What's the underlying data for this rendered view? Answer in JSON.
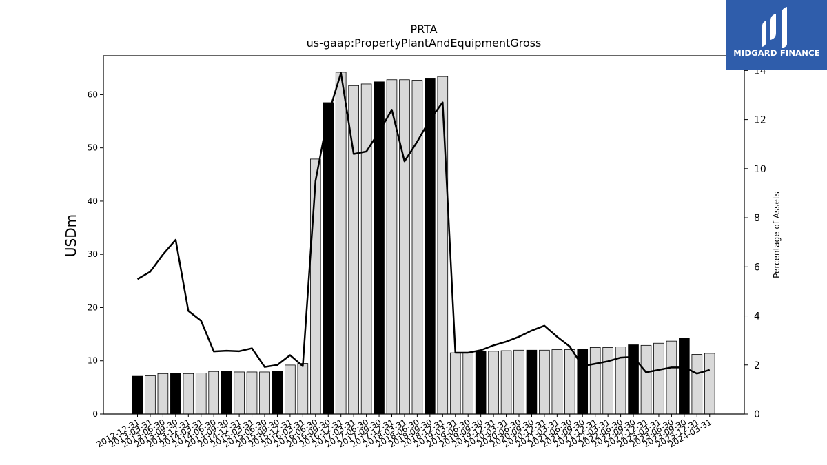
{
  "brand": {
    "name": "MIDGARD FINANCE",
    "color": "#2f5dab"
  },
  "chart_data": {
    "type": "bar",
    "title": "PRTA",
    "subtitle": "us-gaap:PropertyPlantAndEquipmentGross",
    "ylabel": "USDm",
    "y2label": "Percentage of Assets",
    "ylim": [
      0,
      67.3
    ],
    "y2lim": [
      0,
      14.6
    ],
    "yticks": [
      0,
      10,
      20,
      30,
      40,
      50,
      60
    ],
    "y2ticks": [
      0,
      2,
      4,
      6,
      8,
      10,
      12,
      14
    ],
    "categories": [
      "2012-12-31",
      "2013-03-31",
      "2013-06-30",
      "2013-09-30",
      "2013-12-31",
      "2014-03-31",
      "2014-06-30",
      "2014-09-30",
      "2014-12-31",
      "2015-03-31",
      "2015-06-30",
      "2015-09-30",
      "2015-12-31",
      "2016-03-31",
      "2016-06-30",
      "2016-09-30",
      "2016-12-31",
      "2017-03-31",
      "2017-06-30",
      "2017-09-30",
      "2017-12-31",
      "2018-03-31",
      "2018-06-30",
      "2018-09-30",
      "2018-12-31",
      "2019-03-31",
      "2019-06-30",
      "2019-09-30",
      "2019-12-31",
      "2020-03-31",
      "2020-06-30",
      "2020-09-30",
      "2020-12-31",
      "2021-03-31",
      "2021-06-30",
      "2021-09-30",
      "2021-12-31",
      "2022-03-31",
      "2022-06-30",
      "2022-09-30",
      "2022-12-31",
      "2023-03-31",
      "2023-06-30",
      "2023-09-30",
      "2023-12-31",
      "2024-03-31"
    ],
    "series": [
      {
        "type": "bar",
        "axis": "left",
        "values": [
          7.1,
          7.2,
          7.6,
          7.6,
          7.6,
          7.7,
          8.0,
          8.1,
          7.9,
          7.9,
          7.9,
          8.1,
          9.2,
          9.5,
          47.9,
          58.5,
          64.2,
          61.7,
          62.0,
          62.4,
          62.8,
          62.8,
          62.7,
          63.1,
          63.4,
          11.5,
          11.6,
          11.8,
          11.8,
          11.9,
          12.0,
          12.0,
          12.0,
          12.1,
          12.1,
          12.2,
          12.5,
          12.5,
          12.6,
          13.0,
          12.9,
          13.3,
          13.7,
          14.2,
          11.2,
          11.4
        ],
        "highlight": [
          true,
          false,
          false,
          true,
          false,
          false,
          false,
          true,
          false,
          false,
          false,
          true,
          false,
          false,
          false,
          true,
          false,
          false,
          false,
          true,
          false,
          false,
          false,
          true,
          false,
          false,
          false,
          true,
          false,
          false,
          false,
          true,
          false,
          false,
          false,
          true,
          false,
          false,
          false,
          true,
          false,
          false,
          false,
          true,
          false,
          false
        ],
        "colors": {
          "normal": "#d9d9d9",
          "highlight": "#000000"
        }
      },
      {
        "type": "line",
        "axis": "right",
        "color": "#000000",
        "values": [
          5.5,
          5.8,
          6.5,
          7.1,
          4.2,
          3.8,
          2.55,
          2.58,
          2.56,
          2.68,
          1.92,
          2.0,
          2.4,
          1.95,
          9.5,
          12.2,
          13.9,
          10.6,
          10.7,
          11.5,
          12.4,
          10.3,
          11.1,
          12.0,
          12.7,
          2.5,
          2.5,
          2.6,
          2.8,
          2.95,
          3.15,
          3.4,
          3.6,
          3.15,
          2.75,
          1.95,
          2.05,
          2.15,
          2.3,
          2.33,
          1.7,
          1.8,
          1.9,
          1.9,
          1.65,
          1.8
        ]
      }
    ]
  }
}
